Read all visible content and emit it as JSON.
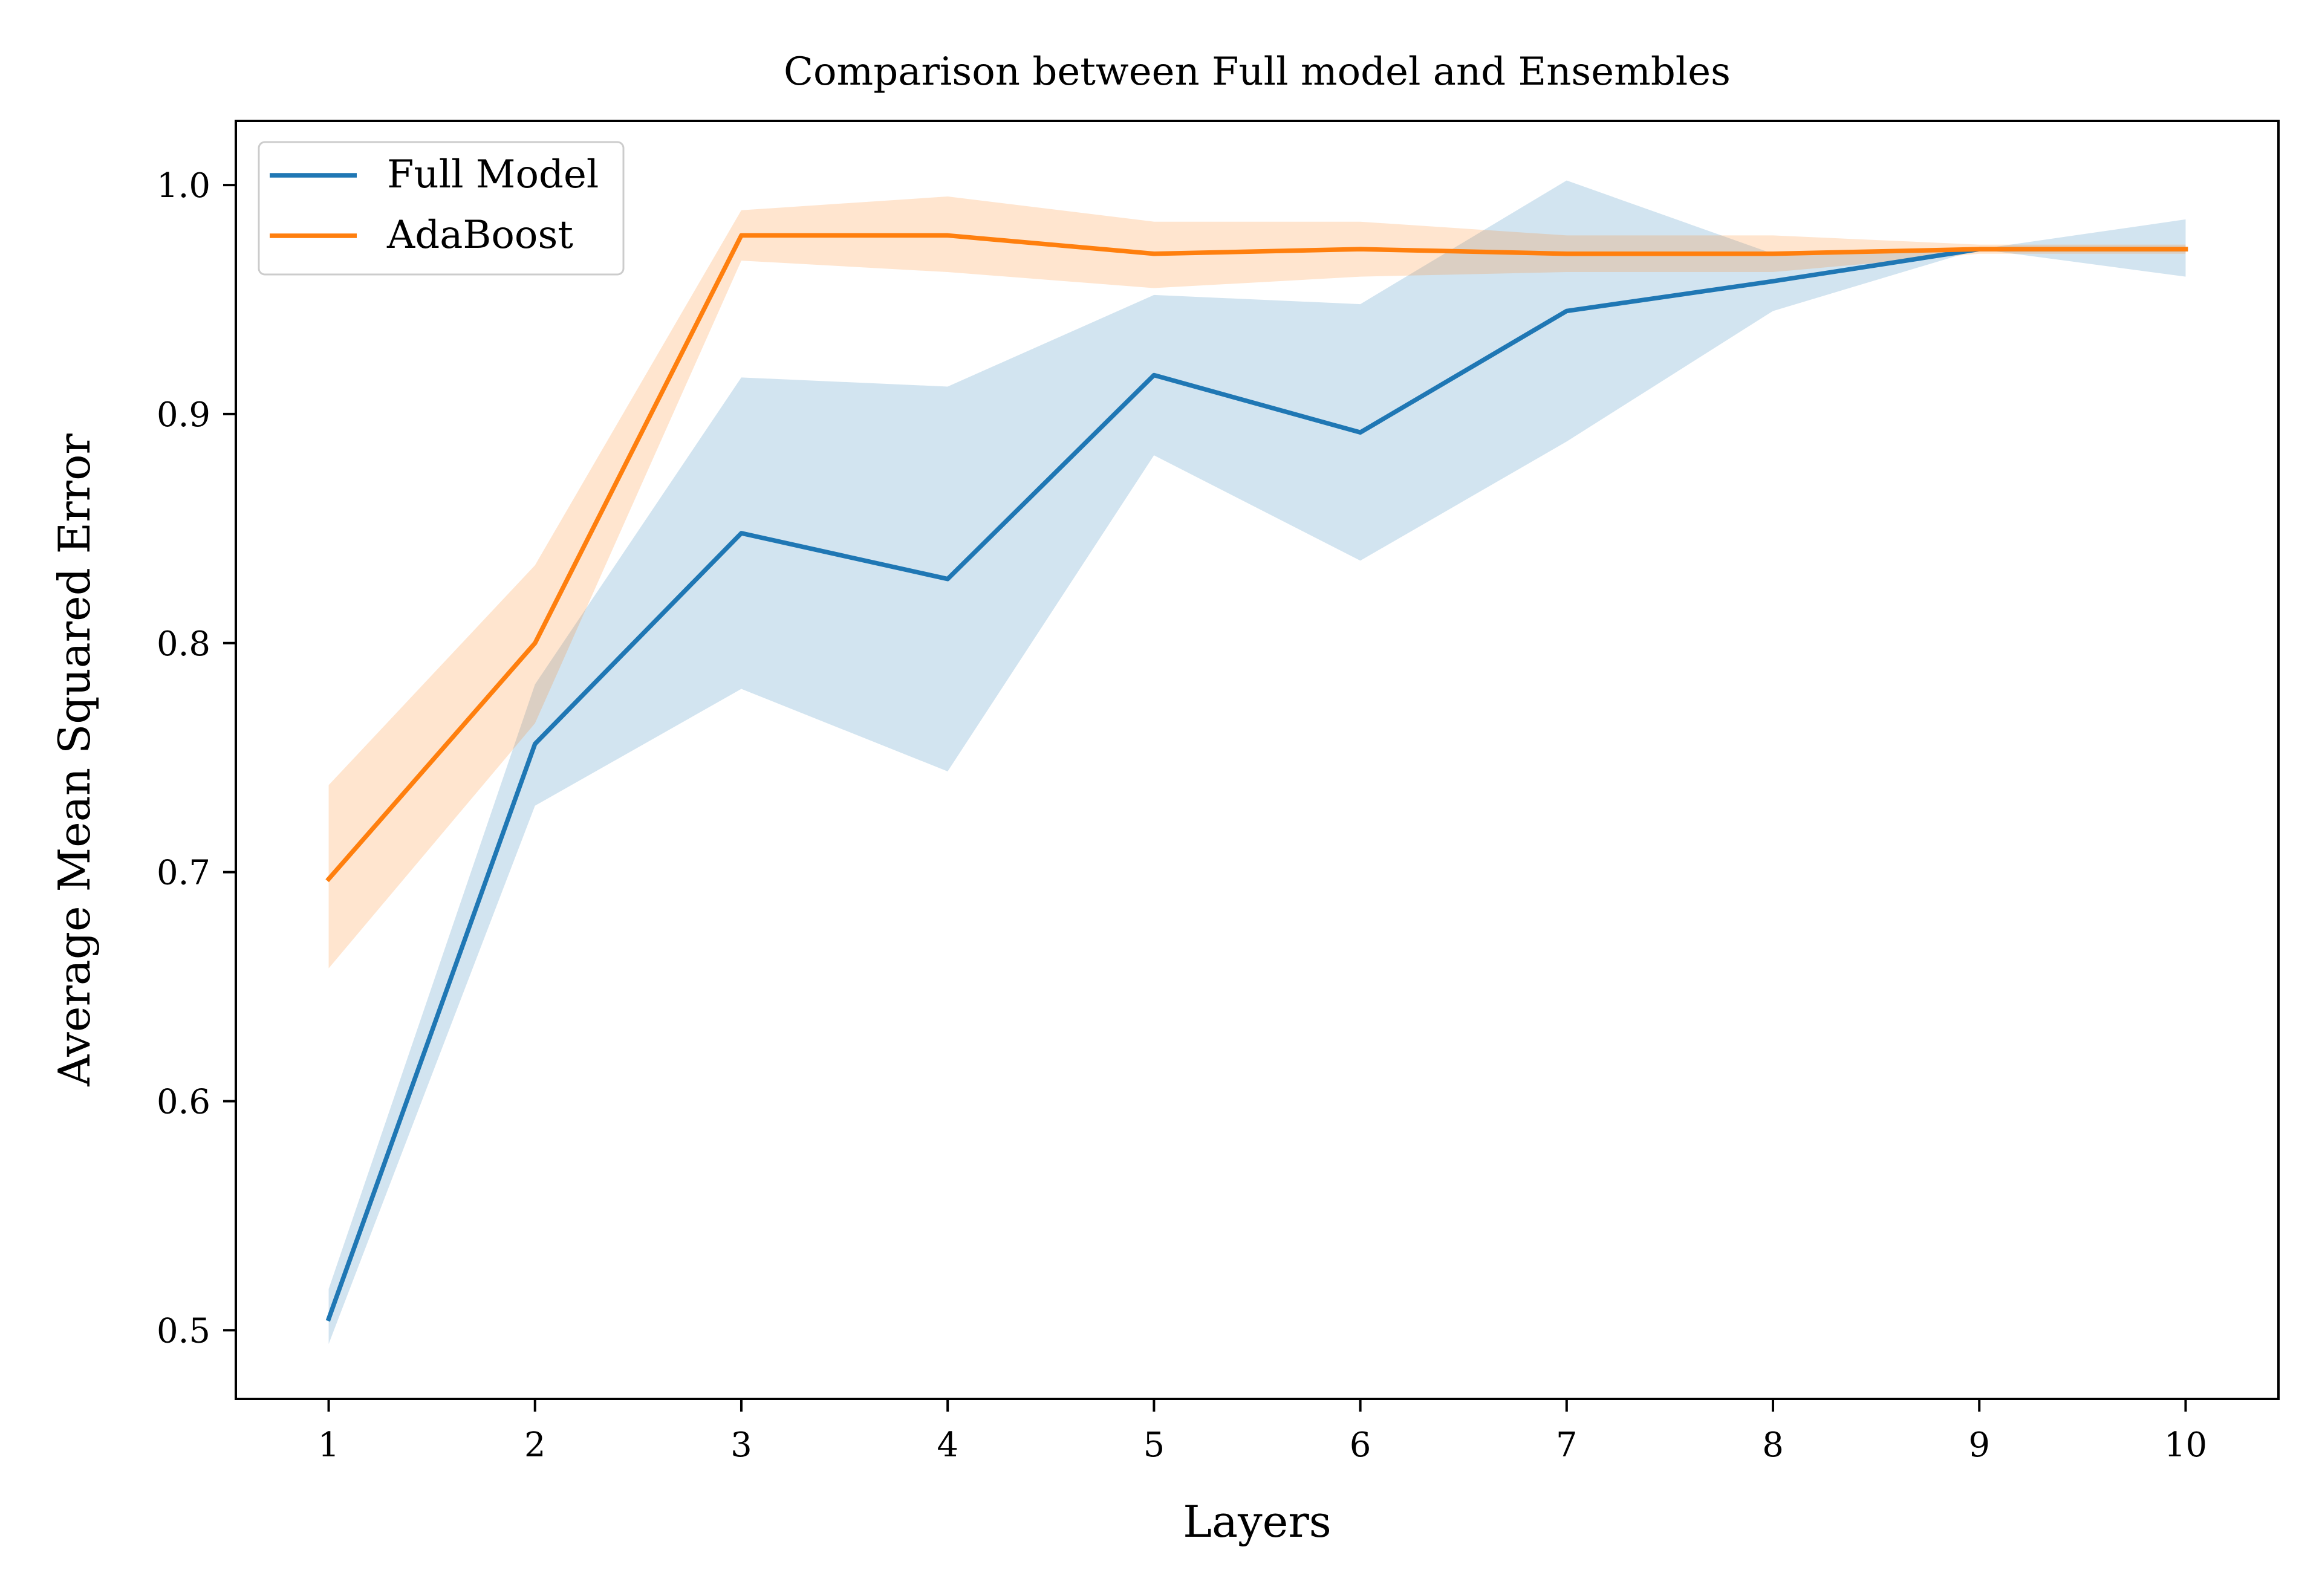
{
  "chart_data": {
    "type": "line",
    "title": "Comparison between Full model and Ensembles",
    "xlabel": "Layers",
    "ylabel": "Average Mean Squared Error",
    "x": [
      1,
      2,
      3,
      4,
      5,
      6,
      7,
      8,
      9,
      10
    ],
    "xlim": [
      0.55,
      10.45
    ],
    "ylim": [
      0.47,
      1.028
    ],
    "x_ticks": [
      1,
      2,
      3,
      4,
      5,
      6,
      7,
      8,
      9,
      10
    ],
    "x_tick_labels": [
      "1",
      "2",
      "3",
      "4",
      "5",
      "6",
      "7",
      "8",
      "9",
      "10"
    ],
    "y_ticks": [
      0.5,
      0.6,
      0.7,
      0.8,
      0.9,
      1.0
    ],
    "y_tick_labels": [
      "0.5",
      "0.6",
      "0.7",
      "0.8",
      "0.9",
      "1.0"
    ],
    "grid": false,
    "legend_position": "top-left",
    "series": [
      {
        "name": "Full Model",
        "color": "#1f77b4",
        "band_color": "#1f77b4",
        "values": [
          0.505,
          0.756,
          0.848,
          0.828,
          0.917,
          0.892,
          0.945,
          0.958,
          0.972,
          0.972
        ],
        "lower": [
          0.494,
          0.729,
          0.78,
          0.744,
          0.882,
          0.836,
          0.888,
          0.945,
          0.972,
          0.96
        ],
        "upper": [
          0.518,
          0.782,
          0.916,
          0.912,
          0.952,
          0.948,
          1.002,
          0.97,
          0.972,
          0.985
        ]
      },
      {
        "name": "AdaBoost",
        "color": "#ff7f0e",
        "band_color": "#ff7f0e",
        "values": [
          0.697,
          0.8,
          0.978,
          0.978,
          0.97,
          0.972,
          0.97,
          0.97,
          0.972,
          0.972
        ],
        "lower": [
          0.658,
          0.765,
          0.967,
          0.962,
          0.955,
          0.96,
          0.962,
          0.962,
          0.97,
          0.97
        ],
        "upper": [
          0.738,
          0.834,
          0.989,
          0.995,
          0.984,
          0.984,
          0.978,
          0.978,
          0.974,
          0.974
        ]
      }
    ]
  }
}
